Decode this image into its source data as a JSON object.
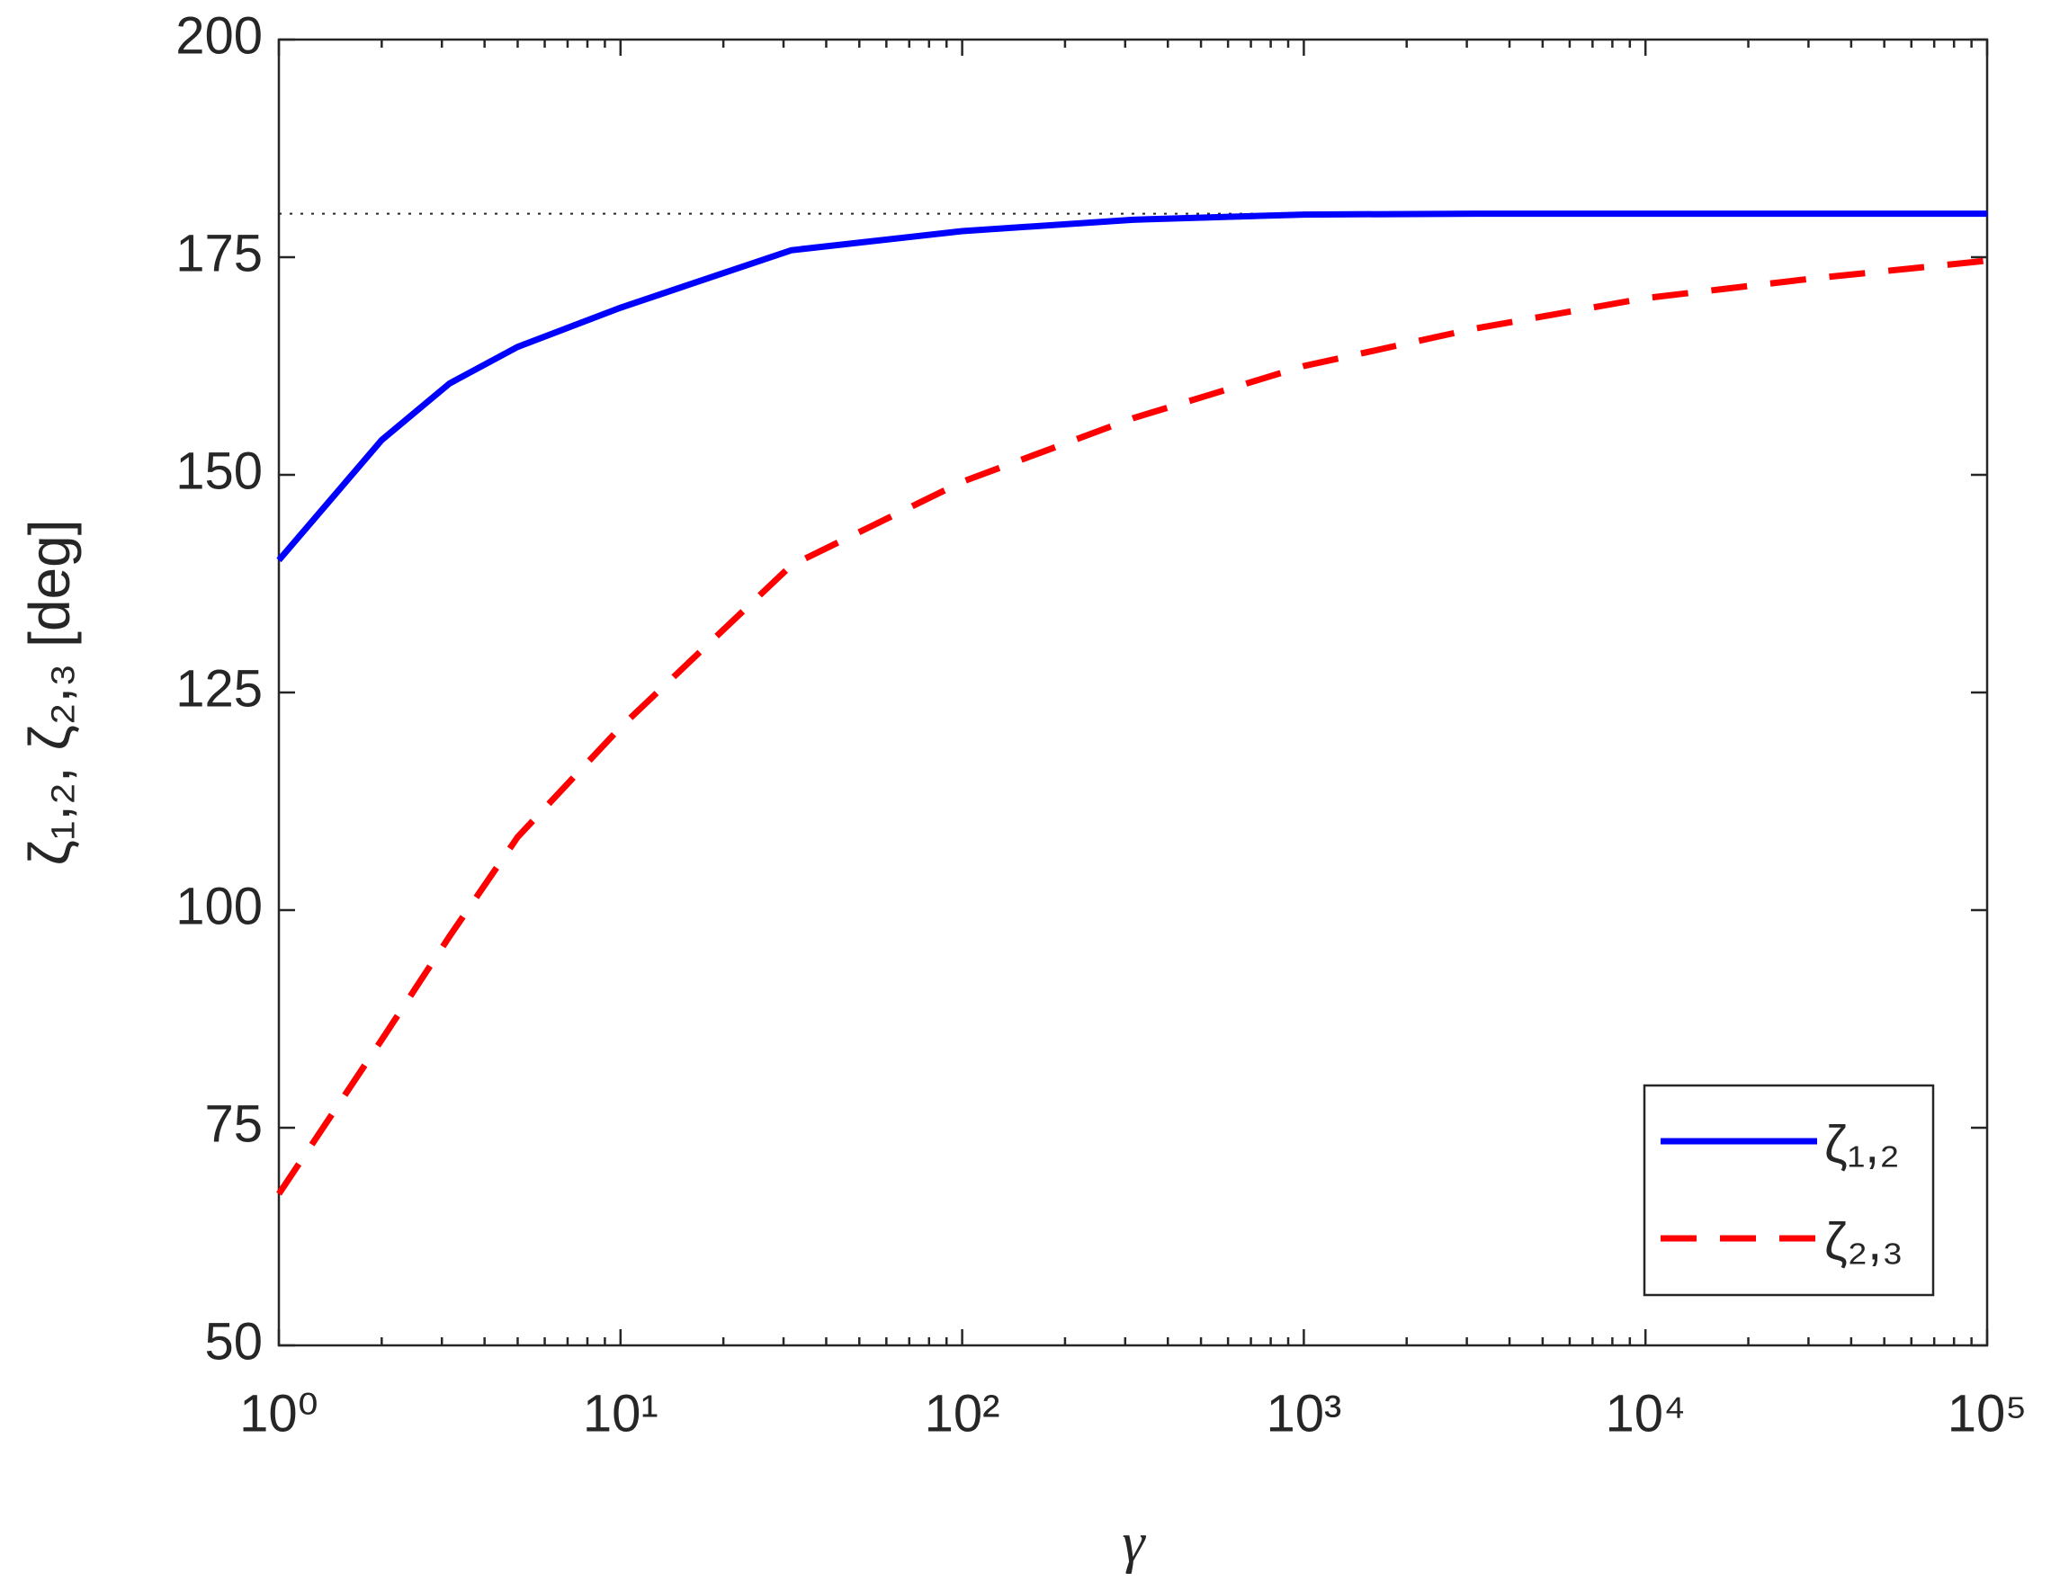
{
  "chart_data": {
    "type": "line",
    "xlabel": "γ",
    "ylabel": "ζ₁,₂, ζ₂,₃ [deg]",
    "x": [
      1,
      2,
      3.16,
      5,
      10,
      31.6,
      100,
      316,
      1000,
      3162,
      10000,
      31623,
      100000
    ],
    "series": [
      {
        "name": "ζ₁,₂",
        "color": "#0000ff",
        "dash": "solid",
        "values": [
          140.2,
          154,
          160.5,
          164.7,
          169.2,
          175.8,
          178,
          179.3,
          179.9,
          180,
          180,
          180,
          180
        ]
      },
      {
        "name": "ζ₂,₃",
        "color": "#ff0000",
        "dash": "dashed",
        "values": [
          67.4,
          85.1,
          97,
          108.4,
          121,
          139.6,
          149.2,
          156.5,
          162.5,
          166.8,
          170.3,
          172.6,
          174.6
        ]
      }
    ],
    "reference_line": 180,
    "xscale": "log",
    "xlim": [
      1,
      100000
    ],
    "xticks": [
      {
        "value": 1,
        "label": "10⁰"
      },
      {
        "value": 10,
        "label": "10¹"
      },
      {
        "value": 100,
        "label": "10²"
      },
      {
        "value": 1000,
        "label": "10³"
      },
      {
        "value": 10000,
        "label": "10⁴"
      },
      {
        "value": 100000,
        "label": "10⁵"
      }
    ],
    "ylim": [
      50,
      200
    ],
    "yticks": [
      50,
      75,
      100,
      125,
      150,
      175,
      200
    ],
    "legend": "lower right"
  }
}
